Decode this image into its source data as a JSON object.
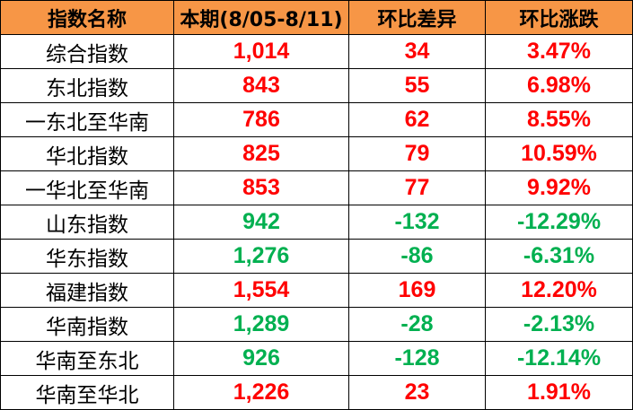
{
  "colors": {
    "header_bg": "#F79646",
    "up": "#FF0000",
    "down": "#00B050"
  },
  "headers": [
    "指数名称",
    "本期(8/05-8/11)",
    "环比差异",
    "环比涨跌"
  ],
  "rows": [
    {
      "name": "综合指数",
      "current": "1,014",
      "diff": "34",
      "pct": "3.47%",
      "trend": "up",
      "current_trend": "up"
    },
    {
      "name": "东北指数",
      "current": "843",
      "diff": "55",
      "pct": "6.98%",
      "trend": "up",
      "current_trend": "up"
    },
    {
      "name": "一东北至华南",
      "current": "786",
      "diff": "62",
      "pct": "8.55%",
      "trend": "up",
      "current_trend": "up"
    },
    {
      "name": "华北指数",
      "current": "825",
      "diff": "79",
      "pct": "10.59%",
      "trend": "up",
      "current_trend": "up"
    },
    {
      "name": "一华北至华南",
      "current": "853",
      "diff": "77",
      "pct": "9.92%",
      "trend": "up",
      "current_trend": "up"
    },
    {
      "name": "山东指数",
      "current": "942",
      "diff": "-132",
      "pct": "-12.29%",
      "trend": "down",
      "current_trend": "down"
    },
    {
      "name": "华东指数",
      "current": "1,276",
      "diff": "-86",
      "pct": "-6.31%",
      "trend": "down",
      "current_trend": "down"
    },
    {
      "name": "福建指数",
      "current": "1,554",
      "diff": "169",
      "pct": "12.20%",
      "trend": "up",
      "current_trend": "up"
    },
    {
      "name": "华南指数",
      "current": "1,289",
      "diff": "-28",
      "pct": "-2.13%",
      "trend": "down",
      "current_trend": "down"
    },
    {
      "name": "华南至东北",
      "current": "926",
      "diff": "-128",
      "pct": "-12.14%",
      "trend": "down",
      "current_trend": "down"
    },
    {
      "name": "华南至华北",
      "current": "1,226",
      "diff": "23",
      "pct": "1.91%",
      "trend": "up",
      "current_trend": "up"
    }
  ]
}
